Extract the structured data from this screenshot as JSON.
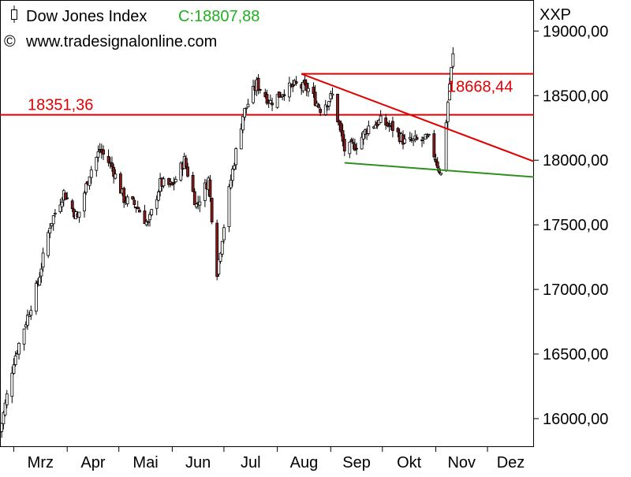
{
  "header": {
    "title": "Dow Jones Index",
    "close_label": "C:18807,88",
    "copyright": "www.tradesignalonline.com",
    "symbol": "XXP"
  },
  "colors": {
    "up_candle": "#ffffff",
    "down_candle": "#8b1a1a",
    "candle_outline": "#000000",
    "resistance_line": "#e00000",
    "support_line": "#2f8f1f",
    "close_text": "#20b020",
    "frame": "#000000"
  },
  "chart_data": {
    "type": "candlestick",
    "title": "Dow Jones Index",
    "x_tick_labels": [
      "Mrz",
      "Apr",
      "Mai",
      "Jun",
      "Jul",
      "Aug",
      "Sep",
      "Okt",
      "Nov",
      "Dez"
    ],
    "y_tick_labels": [
      "16000,00",
      "16500,00",
      "17000,00",
      "17500,00",
      "18000,00",
      "18500,00",
      "19000,00"
    ],
    "y_ticks": [
      16000,
      16500,
      17000,
      17500,
      18000,
      18500,
      19000
    ],
    "ylim": [
      15780,
      19240
    ],
    "x_range": [
      "2016-02-22",
      "2016-12-28"
    ],
    "grid": false,
    "last_close": 18807.88,
    "series": [
      {
        "date": "2016-02-22",
        "close": 15900
      },
      {
        "date": "2016-03-01",
        "close": 16450
      },
      {
        "date": "2016-03-08",
        "close": 16750
      },
      {
        "date": "2016-03-15",
        "close": 17050
      },
      {
        "date": "2016-03-22",
        "close": 17500
      },
      {
        "date": "2016-03-30",
        "close": 17750
      },
      {
        "date": "2016-04-07",
        "close": 17550
      },
      {
        "date": "2016-04-14",
        "close": 17900
      },
      {
        "date": "2016-04-20",
        "close": 18080
      },
      {
        "date": "2016-04-27",
        "close": 17950
      },
      {
        "date": "2016-05-04",
        "close": 17700
      },
      {
        "date": "2016-05-11",
        "close": 17650
      },
      {
        "date": "2016-05-18",
        "close": 17500
      },
      {
        "date": "2016-05-25",
        "close": 17820
      },
      {
        "date": "2016-06-01",
        "close": 17800
      },
      {
        "date": "2016-06-08",
        "close": 18000
      },
      {
        "date": "2016-06-15",
        "close": 17650
      },
      {
        "date": "2016-06-22",
        "close": 17850
      },
      {
        "date": "2016-06-27",
        "close": 17140
      },
      {
        "date": "2016-07-05",
        "close": 17850
      },
      {
        "date": "2016-07-12",
        "close": 18350
      },
      {
        "date": "2016-07-20",
        "close": 18590
      },
      {
        "date": "2016-07-28",
        "close": 18450
      },
      {
        "date": "2016-08-05",
        "close": 18540
      },
      {
        "date": "2016-08-12",
        "close": 18580
      },
      {
        "date": "2016-08-19",
        "close": 18550
      },
      {
        "date": "2016-08-26",
        "close": 18400
      },
      {
        "date": "2016-09-02",
        "close": 18500
      },
      {
        "date": "2016-09-09",
        "close": 18080
      },
      {
        "date": "2016-09-16",
        "close": 18120
      },
      {
        "date": "2016-09-23",
        "close": 18260
      },
      {
        "date": "2016-09-30",
        "close": 18300
      },
      {
        "date": "2016-10-07",
        "close": 18250
      },
      {
        "date": "2016-10-14",
        "close": 18140
      },
      {
        "date": "2016-10-21",
        "close": 18150
      },
      {
        "date": "2016-10-28",
        "close": 18160
      },
      {
        "date": "2016-11-04",
        "close": 17890
      },
      {
        "date": "2016-11-09",
        "close": 18590
      },
      {
        "date": "2016-11-11",
        "close": 18807.88
      }
    ],
    "lines": [
      {
        "name": "horizontal-resistance",
        "label": "18351,36",
        "value": 18351.36,
        "color": "#e00000"
      },
      {
        "name": "horizontal-high",
        "label": "18668,44",
        "value": 18668.44,
        "color": "#e00000"
      },
      {
        "name": "descending-trendline",
        "from": [
          "2016-08-15",
          18668.44
        ],
        "to": [
          "2016-12-28",
          17990
        ],
        "color": "#e00000"
      },
      {
        "name": "support-trendline",
        "from": [
          "2016-09-09",
          17980
        ],
        "to": [
          "2016-12-28",
          17870
        ],
        "color": "#2f8f1f"
      }
    ]
  }
}
